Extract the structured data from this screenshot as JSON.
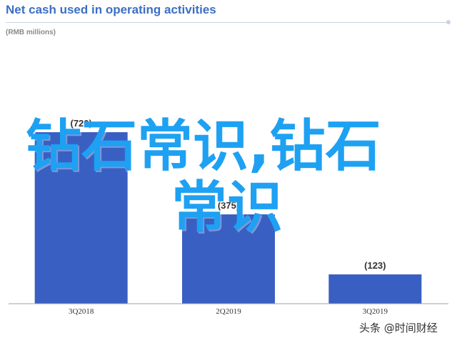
{
  "header": {
    "title": "Net cash used in operating activities",
    "subtitle": "(RMB millions)"
  },
  "overlay": {
    "line1": "钻石常识,钻石",
    "line2": "常识"
  },
  "watermark": "头条 @时间财经",
  "colors": {
    "bar": "#3a5fc2",
    "title": "#3b6fc4",
    "overlay": "#1ea1f2"
  },
  "chart_data": {
    "type": "bar",
    "title": "Net cash used in operating activities",
    "subtitle": "(RMB millions)",
    "categories": [
      "3Q2018",
      "2Q2019",
      "3Q2019"
    ],
    "values": [
      -720,
      -375,
      -123
    ],
    "value_labels": [
      "(720)",
      "(375)",
      "(123)"
    ],
    "ylim": [
      -800,
      0
    ],
    "grid": false,
    "legend": "none"
  }
}
